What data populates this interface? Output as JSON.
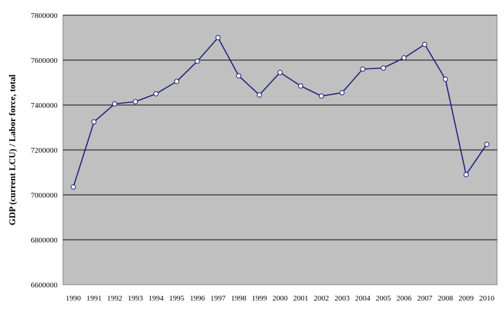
{
  "chart_data": {
    "type": "line",
    "title": "",
    "xlabel": "",
    "ylabel": "GDP (current LCU) / Labor force, total",
    "ylim": [
      6600000,
      7800000
    ],
    "yticks": [
      "6600000",
      "6800000",
      "7000000",
      "7200000",
      "7400000",
      "7600000",
      "7800000"
    ],
    "grid": true,
    "legend": "none",
    "colors": {
      "plot_background": "#c0c0c0",
      "line": "#1a1f7a",
      "marker_fill": "#ffffff",
      "gridline": "#000000"
    },
    "categories": [
      "1990",
      "1991",
      "1992",
      "1993",
      "1994",
      "1995",
      "1996",
      "1997",
      "1998",
      "1999",
      "2000",
      "2001",
      "2002",
      "2003",
      "2004",
      "2005",
      "2006",
      "2007",
      "2008",
      "2009",
      "2010"
    ],
    "series": [
      {
        "values": [
          7035000,
          7325000,
          7405000,
          7415000,
          7450000,
          7505000,
          7595000,
          7700000,
          7530000,
          7445000,
          7545000,
          7485000,
          7440000,
          7455000,
          7560000,
          7565000,
          7610000,
          7670000,
          7515000,
          7090000,
          7225000
        ]
      }
    ]
  }
}
